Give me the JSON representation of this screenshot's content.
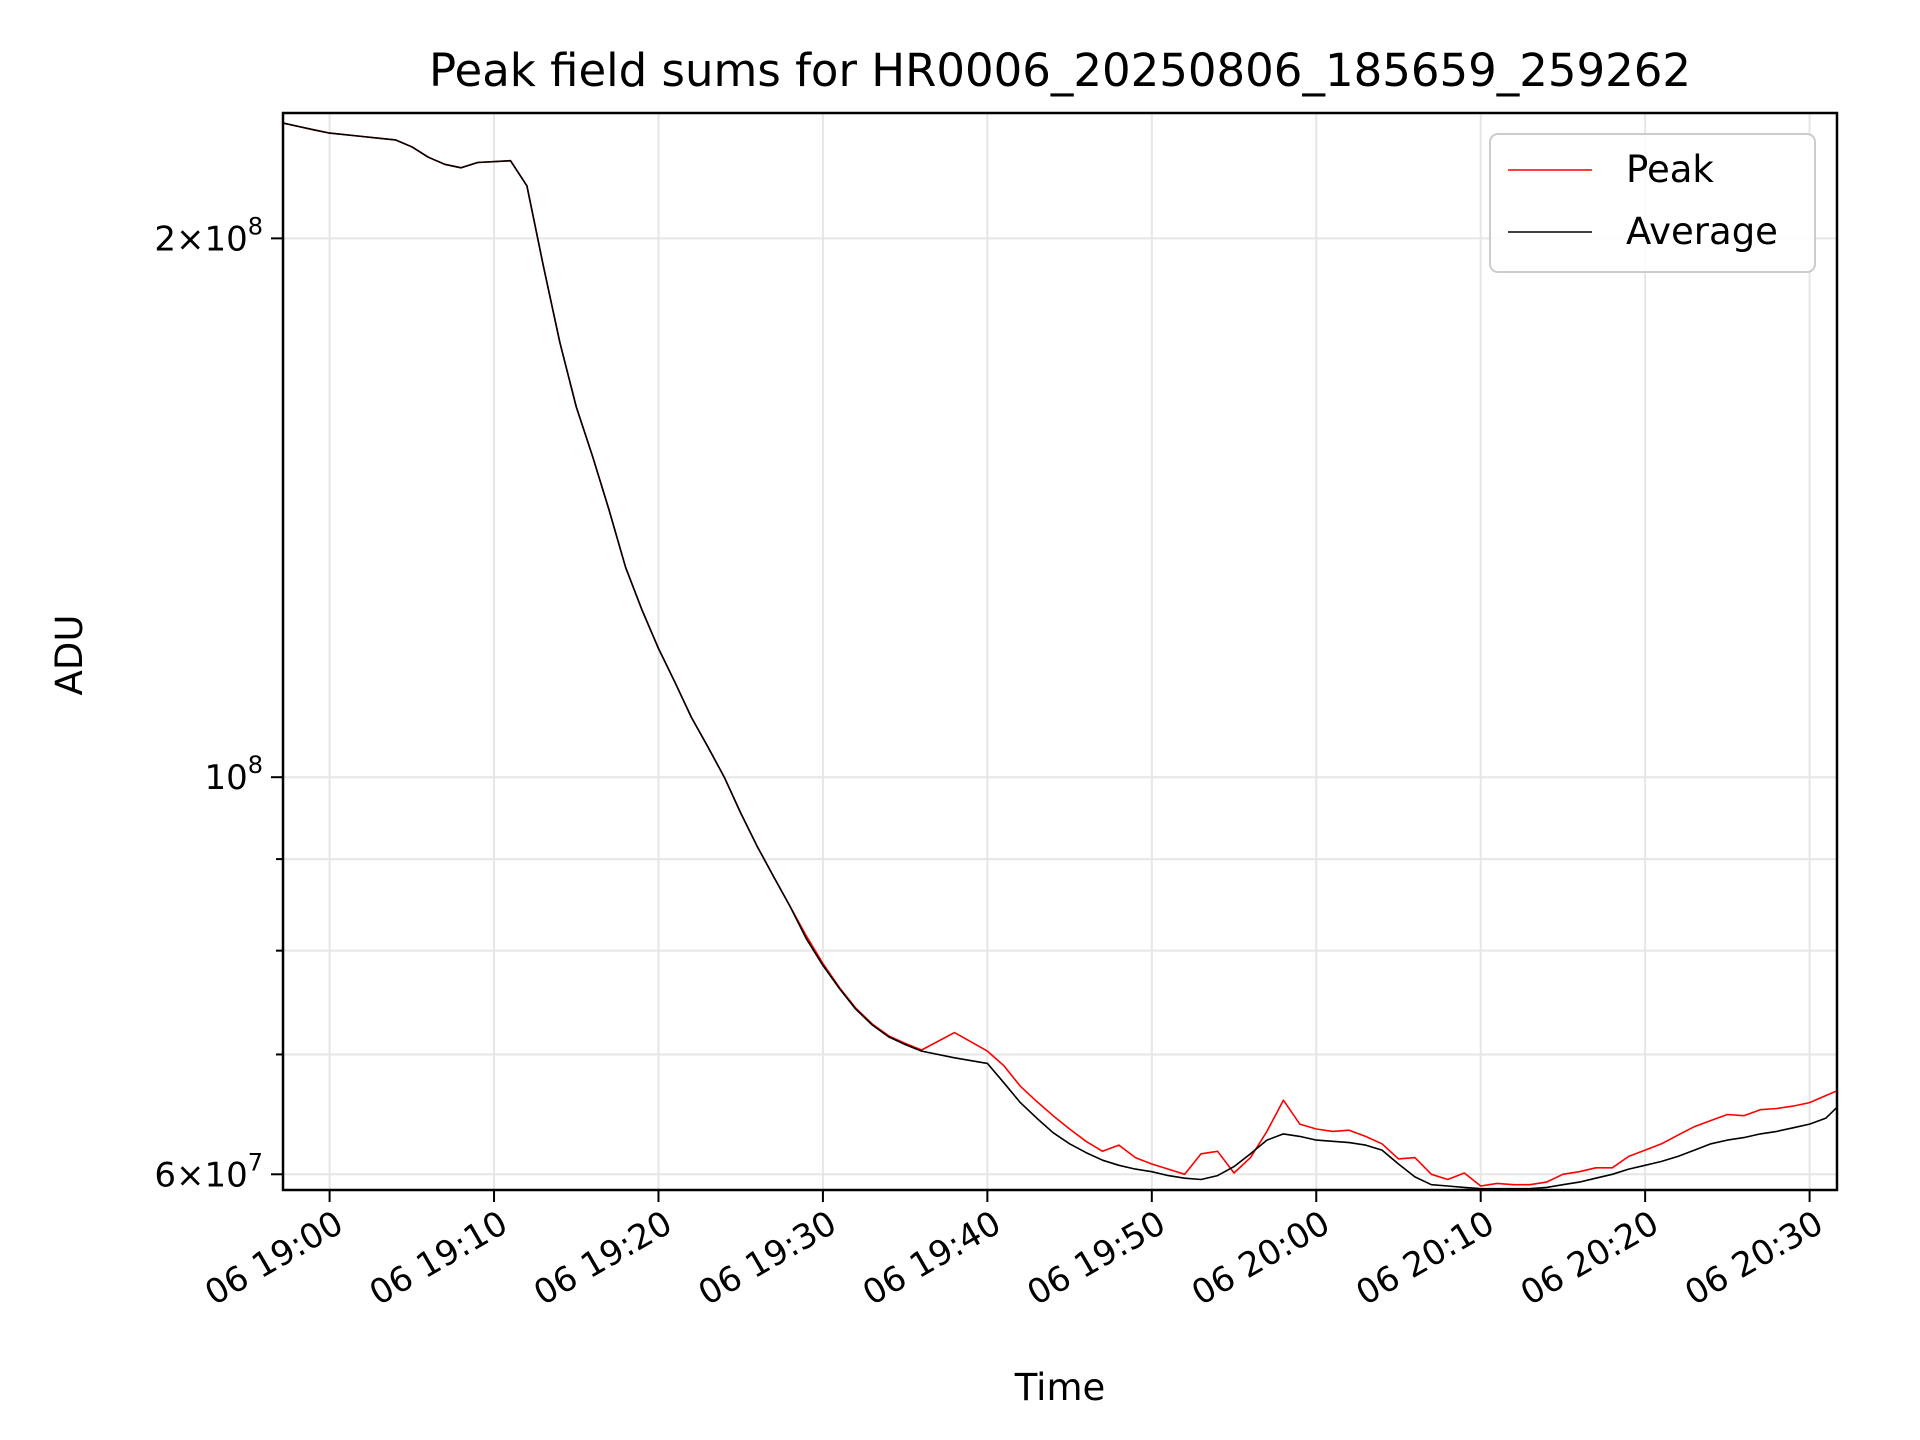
{
  "chart_data": {
    "type": "line",
    "title": "Peak field sums for HR0006_20250806_185659_259262",
    "xlabel": "Time",
    "ylabel": "ADU",
    "x_axis": {
      "type": "datetime",
      "range": [
        "2025-08-06 18:57:10",
        "2025-08-06 20:31:40"
      ],
      "ticks": [
        "2025-08-06 19:00",
        "2025-08-06 19:10",
        "2025-08-06 19:20",
        "2025-08-06 19:30",
        "2025-08-06 19:40",
        "2025-08-06 19:50",
        "2025-08-06 20:00",
        "2025-08-06 20:10",
        "2025-08-06 20:20",
        "2025-08-06 20:30"
      ],
      "tick_labels": [
        "06 19:00",
        "06 19:10",
        "06 19:20",
        "06 19:30",
        "06 19:40",
        "06 19:50",
        "06 20:00",
        "06 20:10",
        "06 20:20",
        "06 20:30"
      ]
    },
    "y_axis": {
      "scale": "log",
      "range": [
        58800000,
        235000000
      ],
      "major_ticks": [
        {
          "value": 60000000,
          "mantissa": "6",
          "exponent": "7"
        },
        {
          "value": 100000000,
          "mantissa": "",
          "exponent": "8"
        },
        {
          "value": 200000000,
          "mantissa": "2",
          "exponent": "8"
        }
      ],
      "minor_ticks": [
        70000000,
        80000000,
        90000000
      ]
    },
    "grid": true,
    "legend": {
      "placement": "top-right",
      "entries": [
        "Peak",
        "Average"
      ]
    },
    "x": [
      "2025-08-06 18:57:10",
      "2025-08-06 18:59:00",
      "2025-08-06 19:00:00",
      "2025-08-06 19:02:00",
      "2025-08-06 19:04:00",
      "2025-08-06 19:05:00",
      "2025-08-06 19:06:00",
      "2025-08-06 19:07:00",
      "2025-08-06 19:08:00",
      "2025-08-06 19:09:00",
      "2025-08-06 19:11:00",
      "2025-08-06 19:12:00",
      "2025-08-06 19:13:00",
      "2025-08-06 19:14:00",
      "2025-08-06 19:15:00",
      "2025-08-06 19:16:00",
      "2025-08-06 19:17:00",
      "2025-08-06 19:18:00",
      "2025-08-06 19:19:00",
      "2025-08-06 19:20:00",
      "2025-08-06 19:21:00",
      "2025-08-06 19:22:00",
      "2025-08-06 19:23:00",
      "2025-08-06 19:24:00",
      "2025-08-06 19:25:00",
      "2025-08-06 19:26:00",
      "2025-08-06 19:27:00",
      "2025-08-06 19:28:00",
      "2025-08-06 19:29:00",
      "2025-08-06 19:30:00",
      "2025-08-06 19:31:00",
      "2025-08-06 19:32:00",
      "2025-08-06 19:33:00",
      "2025-08-06 19:34:00",
      "2025-08-06 19:35:00",
      "2025-08-06 19:36:00",
      "2025-08-06 19:38:00",
      "2025-08-06 19:40:00",
      "2025-08-06 19:41:00",
      "2025-08-06 19:42:00",
      "2025-08-06 19:43:00",
      "2025-08-06 19:44:00",
      "2025-08-06 19:45:00",
      "2025-08-06 19:46:00",
      "2025-08-06 19:47:00",
      "2025-08-06 19:48:00",
      "2025-08-06 19:49:00",
      "2025-08-06 19:50:00",
      "2025-08-06 19:51:00",
      "2025-08-06 19:52:00",
      "2025-08-06 19:53:00",
      "2025-08-06 19:54:00",
      "2025-08-06 19:55:00",
      "2025-08-06 19:56:00",
      "2025-08-06 19:57:00",
      "2025-08-06 19:58:00",
      "2025-08-06 19:59:00",
      "2025-08-06 20:00:00",
      "2025-08-06 20:01:00",
      "2025-08-06 20:02:00",
      "2025-08-06 20:03:00",
      "2025-08-06 20:04:00",
      "2025-08-06 20:05:00",
      "2025-08-06 20:06:00",
      "2025-08-06 20:07:00",
      "2025-08-06 20:08:00",
      "2025-08-06 20:09:00",
      "2025-08-06 20:10:00",
      "2025-08-06 20:11:00",
      "2025-08-06 20:12:00",
      "2025-08-06 20:13:00",
      "2025-08-06 20:14:00",
      "2025-08-06 20:15:00",
      "2025-08-06 20:16:00",
      "2025-08-06 20:17:00",
      "2025-08-06 20:18:00",
      "2025-08-06 20:19:00",
      "2025-08-06 20:20:00",
      "2025-08-06 20:21:00",
      "2025-08-06 20:22:00",
      "2025-08-06 20:23:00",
      "2025-08-06 20:24:00",
      "2025-08-06 20:25:00",
      "2025-08-06 20:26:00",
      "2025-08-06 20:27:00",
      "2025-08-06 20:28:00",
      "2025-08-06 20:29:00",
      "2025-08-06 20:30:00",
      "2025-08-06 20:31:00",
      "2025-08-06 20:31:40"
    ],
    "series": [
      {
        "name": "Peak",
        "color": "#ff0000",
        "values": [
          232000000,
          230000000,
          229000000,
          228000000,
          227000000,
          225000000,
          222000000,
          220000000,
          219000000,
          220500000,
          221000000,
          214000000,
          193000000,
          175000000,
          161000000,
          151000000,
          141000000,
          131000000,
          124000000,
          118000000,
          113000000,
          108000000,
          104000000,
          100000000,
          95500000,
          91500000,
          88000000,
          84700000,
          81500000,
          78700000,
          76300000,
          74300000,
          72800000,
          71700000,
          71000000,
          70400000,
          72000000,
          70300000,
          69000000,
          67200000,
          65900000,
          64700000,
          63600000,
          62600000,
          61800000,
          62300000,
          61300000,
          60800000,
          60400000,
          60000000,
          61600000,
          61800000,
          60100000,
          61300000,
          63400000,
          66000000,
          64000000,
          63600000,
          63400000,
          63500000,
          63000000,
          62400000,
          61200000,
          61300000,
          60000000,
          59600000,
          60100000,
          59100000,
          59300000,
          59200000,
          59200000,
          59400000,
          60000000,
          60200000,
          60500000,
          60500000,
          61400000,
          61900000,
          62400000,
          63100000,
          63800000,
          64300000,
          64800000,
          64700000,
          65200000,
          65300000,
          65500000,
          65800000,
          66400000,
          66800000
        ]
      },
      {
        "name": "Average",
        "color": "#000000",
        "values": [
          232000000,
          230000000,
          229000000,
          228000000,
          227000000,
          225000000,
          222000000,
          220000000,
          219000000,
          220500000,
          221000000,
          214000000,
          193000000,
          175000000,
          161000000,
          151000000,
          141000000,
          131000000,
          124000000,
          118000000,
          113000000,
          108000000,
          104000000,
          100000000,
          95500000,
          91500000,
          88000000,
          84700000,
          81200000,
          78500000,
          76200000,
          74200000,
          72700000,
          71600000,
          70900000,
          70300000,
          69700000,
          69200000,
          67500000,
          65800000,
          64500000,
          63300000,
          62400000,
          61700000,
          61100000,
          60700000,
          60400000,
          60200000,
          59900000,
          59700000,
          59600000,
          59900000,
          60600000,
          61600000,
          62700000,
          63200000,
          63000000,
          62700000,
          62600000,
          62500000,
          62300000,
          61900000,
          60800000,
          59800000,
          59200000,
          59100000,
          59000000,
          58900000,
          58900000,
          58900000,
          58900000,
          59000000,
          59200000,
          59400000,
          59700000,
          60000000,
          60400000,
          60700000,
          61000000,
          61400000,
          61900000,
          62400000,
          62700000,
          62900000,
          63200000,
          63400000,
          63700000,
          64000000,
          64500000,
          65400000
        ]
      }
    ]
  }
}
